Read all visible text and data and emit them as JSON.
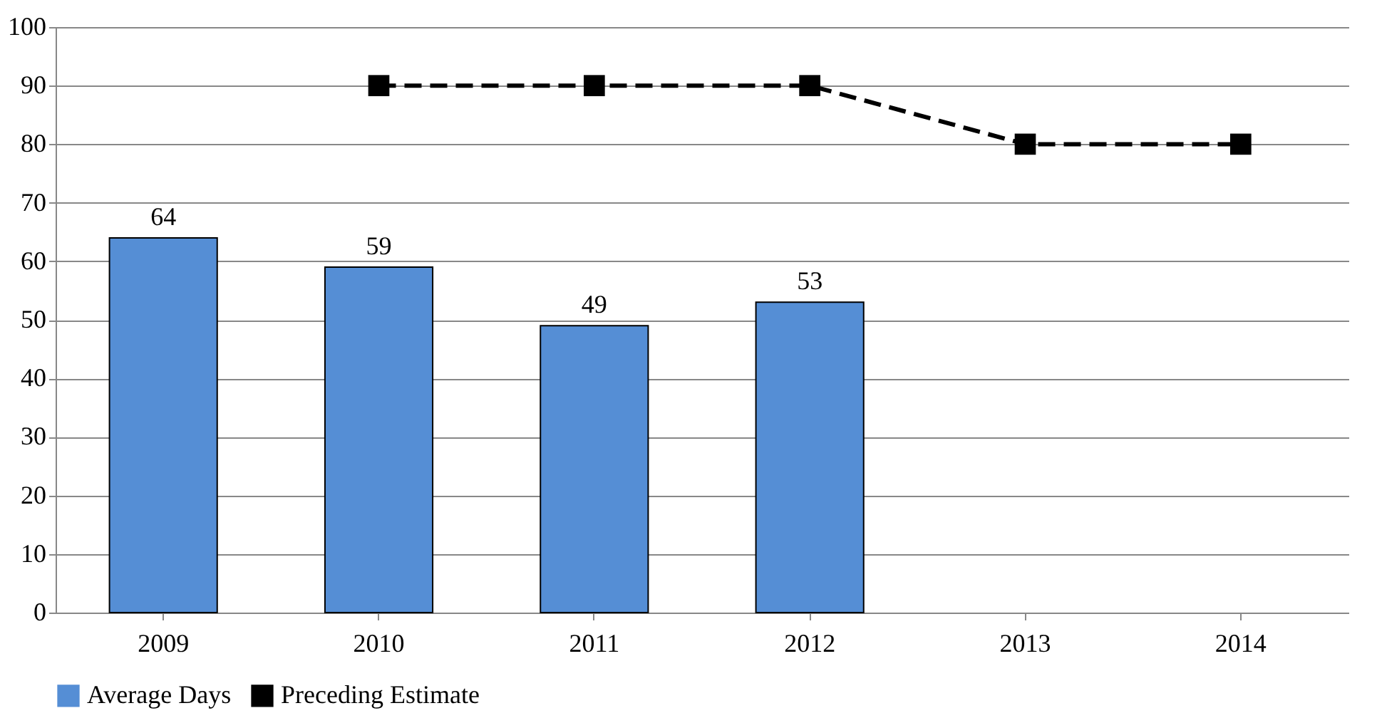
{
  "chart_data": {
    "type": "bar",
    "categories": [
      "2009",
      "2010",
      "2011",
      "2012",
      "2013",
      "2014"
    ],
    "series": [
      {
        "name": "Average Days",
        "color": "#558ed5",
        "values": [
          64,
          59,
          49,
          53,
          null,
          null
        ],
        "value_labels": [
          "64",
          "59",
          "49",
          "53",
          null,
          null
        ]
      },
      {
        "name": "Preceding Estimate",
        "type": "line",
        "color": "#000000",
        "values": [
          null,
          90,
          90,
          90,
          80,
          80
        ],
        "marker": "square",
        "line_style": "dashed"
      }
    ],
    "ylim": [
      0,
      100
    ],
    "yticks": [
      0,
      10,
      20,
      30,
      40,
      50,
      60,
      70,
      80,
      90,
      100
    ],
    "grid": "y",
    "legend": "bottom"
  }
}
